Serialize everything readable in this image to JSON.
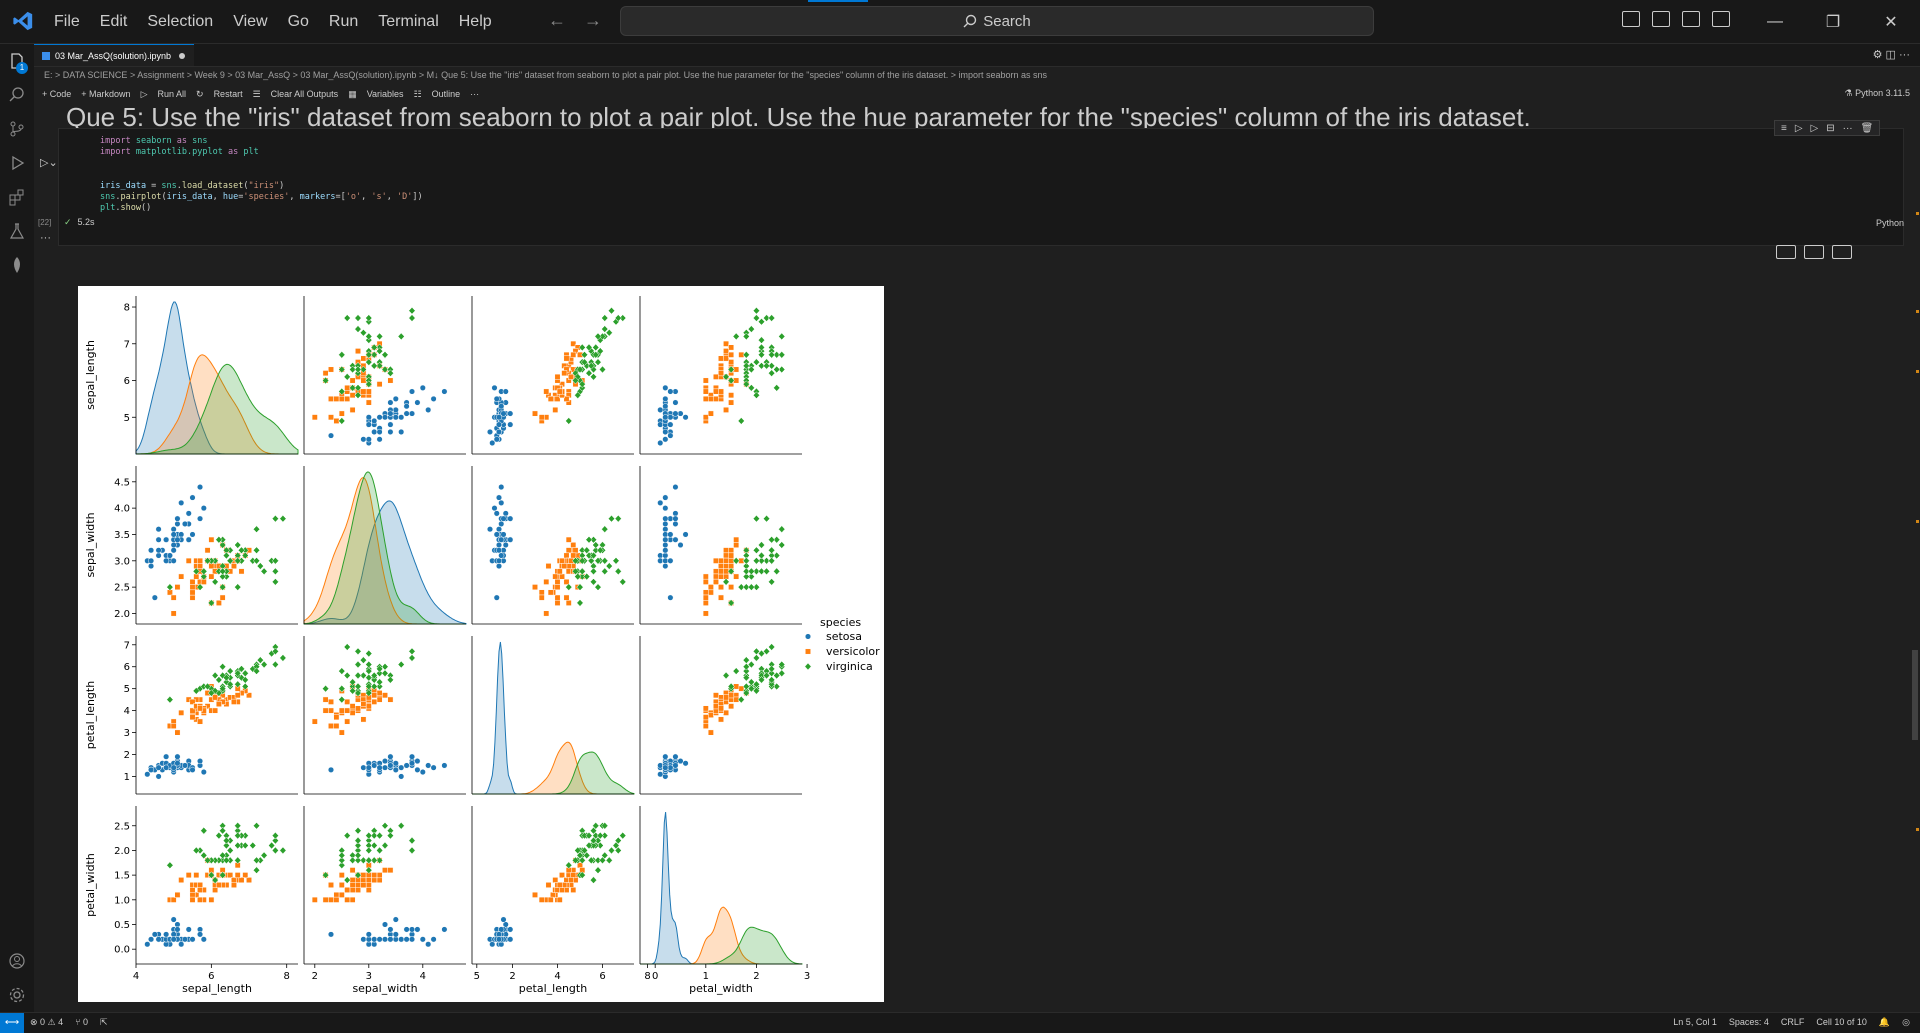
{
  "menu": [
    "File",
    "Edit",
    "Selection",
    "View",
    "Go",
    "Run",
    "Terminal",
    "Help"
  ],
  "search": {
    "label": "Search"
  },
  "tab": {
    "title": "03 Mar_AssQ(solution).ipynb"
  },
  "breadcrumb": "E: > DATA SCIENCE > Assignment > Week 9 > 03 Mar_AssQ > 03 Mar_AssQ(solution).ipynb > M↓ Que 5: Use the \"iris\" dataset from seaborn to plot a pair plot. Use the hue parameter for the \"species\" column of the iris dataset. > import seaborn as sns",
  "toolbar": [
    "+ Code",
    "+ Markdown",
    "Run All",
    "Restart",
    "Clear All Outputs",
    "Variables",
    "Outline",
    "···"
  ],
  "kernel": "Python 3.11.5",
  "heading": "Que 5: Use the \"iris\" dataset from seaborn to plot a pair plot. Use the hue parameter for the \"species\" column of the iris dataset.",
  "cell": {
    "exec_count": "[22]",
    "time": "5.2s",
    "language": "Python",
    "badge": "1"
  },
  "statusbar": {
    "errors": "⊗ 0 ⚠ 4",
    "ports": "⑂ 0",
    "position": "Ln 5, Col 1",
    "spaces": "Spaces: 4",
    "eol": "CRLF",
    "cell": "Cell 10 of 10"
  },
  "chart_data": {
    "type": "scatter",
    "title": "",
    "variables": [
      "sepal_length",
      "sepal_width",
      "petal_length",
      "petal_width"
    ],
    "legend": {
      "title": "species",
      "entries": [
        "setosa",
        "versicolor",
        "virginica"
      ],
      "markers": [
        "o",
        "s",
        "D"
      ],
      "placement": "right"
    },
    "colors": {
      "setosa": "#1f77b4",
      "versicolor": "#ff7f0e",
      "virginica": "#2ca02c"
    },
    "x_ticks": [
      [
        4,
        6,
        8
      ],
      [
        2,
        3,
        4,
        5
      ],
      [
        2,
        4,
        6,
        8
      ],
      [
        0,
        1,
        2,
        3
      ]
    ],
    "y_ticks": [
      [
        5,
        6,
        7,
        8
      ],
      [
        2.0,
        2.5,
        3.0,
        3.5,
        4.0,
        4.5
      ],
      [
        1,
        2,
        3,
        4,
        5,
        6,
        7
      ],
      [
        0.0,
        0.5,
        1.0,
        1.5,
        2.0,
        2.5
      ]
    ],
    "series": [
      {
        "name": "setosa",
        "points": [
          [
            5.1,
            3.5,
            1.4,
            0.2
          ],
          [
            4.9,
            3.0,
            1.4,
            0.2
          ],
          [
            4.7,
            3.2,
            1.3,
            0.2
          ],
          [
            4.6,
            3.1,
            1.5,
            0.2
          ],
          [
            5.0,
            3.6,
            1.4,
            0.2
          ],
          [
            5.4,
            3.9,
            1.7,
            0.4
          ],
          [
            4.6,
            3.4,
            1.4,
            0.3
          ],
          [
            5.0,
            3.4,
            1.5,
            0.2
          ],
          [
            4.4,
            2.9,
            1.4,
            0.2
          ],
          [
            4.9,
            3.1,
            1.5,
            0.1
          ],
          [
            5.4,
            3.7,
            1.5,
            0.2
          ],
          [
            4.8,
            3.4,
            1.6,
            0.2
          ],
          [
            4.8,
            3.0,
            1.4,
            0.1
          ],
          [
            4.3,
            3.0,
            1.1,
            0.1
          ],
          [
            5.8,
            4.0,
            1.2,
            0.2
          ],
          [
            5.7,
            4.4,
            1.5,
            0.4
          ],
          [
            5.4,
            3.9,
            1.3,
            0.4
          ],
          [
            5.1,
            3.5,
            1.4,
            0.3
          ],
          [
            5.7,
            3.8,
            1.7,
            0.3
          ],
          [
            5.1,
            3.8,
            1.5,
            0.3
          ],
          [
            5.4,
            3.4,
            1.7,
            0.2
          ],
          [
            5.1,
            3.7,
            1.5,
            0.4
          ],
          [
            4.6,
            3.6,
            1.0,
            0.2
          ],
          [
            5.1,
            3.3,
            1.7,
            0.5
          ],
          [
            4.8,
            3.4,
            1.9,
            0.2
          ],
          [
            5.0,
            3.0,
            1.6,
            0.2
          ],
          [
            5.0,
            3.4,
            1.6,
            0.4
          ],
          [
            5.2,
            3.5,
            1.5,
            0.2
          ],
          [
            5.2,
            3.4,
            1.4,
            0.2
          ],
          [
            4.7,
            3.2,
            1.6,
            0.2
          ],
          [
            4.8,
            3.1,
            1.6,
            0.2
          ],
          [
            5.4,
            3.4,
            1.5,
            0.4
          ],
          [
            5.2,
            4.1,
            1.5,
            0.1
          ],
          [
            5.5,
            4.2,
            1.4,
            0.2
          ],
          [
            4.9,
            3.1,
            1.5,
            0.2
          ],
          [
            5.0,
            3.2,
            1.2,
            0.2
          ],
          [
            5.5,
            3.5,
            1.3,
            0.2
          ],
          [
            4.4,
            3.0,
            1.3,
            0.2
          ],
          [
            5.1,
            3.4,
            1.5,
            0.2
          ],
          [
            5.0,
            3.5,
            1.3,
            0.3
          ],
          [
            4.5,
            2.3,
            1.3,
            0.3
          ],
          [
            4.4,
            3.2,
            1.3,
            0.2
          ],
          [
            5.0,
            3.5,
            1.6,
            0.6
          ],
          [
            5.1,
            3.8,
            1.9,
            0.4
          ],
          [
            4.8,
            3.0,
            1.4,
            0.3
          ],
          [
            5.1,
            3.8,
            1.6,
            0.2
          ],
          [
            4.6,
            3.2,
            1.4,
            0.2
          ],
          [
            5.3,
            3.7,
            1.5,
            0.2
          ],
          [
            5.0,
            3.3,
            1.4,
            0.2
          ]
        ]
      },
      {
        "name": "versicolor",
        "points": [
          [
            7.0,
            3.2,
            4.7,
            1.4
          ],
          [
            6.4,
            3.2,
            4.5,
            1.5
          ],
          [
            6.9,
            3.1,
            4.9,
            1.5
          ],
          [
            5.5,
            2.3,
            4.0,
            1.3
          ],
          [
            6.5,
            2.8,
            4.6,
            1.5
          ],
          [
            5.7,
            2.8,
            4.5,
            1.3
          ],
          [
            6.3,
            3.3,
            4.7,
            1.6
          ],
          [
            4.9,
            2.4,
            3.3,
            1.0
          ],
          [
            6.6,
            2.9,
            4.6,
            1.3
          ],
          [
            5.2,
            2.7,
            3.9,
            1.4
          ],
          [
            5.0,
            2.0,
            3.5,
            1.0
          ],
          [
            5.9,
            3.0,
            4.2,
            1.5
          ],
          [
            6.0,
            2.2,
            4.0,
            1.0
          ],
          [
            6.1,
            2.9,
            4.7,
            1.4
          ],
          [
            5.6,
            2.9,
            3.6,
            1.3
          ],
          [
            6.7,
            3.1,
            4.4,
            1.4
          ],
          [
            5.6,
            3.0,
            4.5,
            1.5
          ],
          [
            5.8,
            2.7,
            4.1,
            1.0
          ],
          [
            6.2,
            2.2,
            4.5,
            1.5
          ],
          [
            5.6,
            2.5,
            3.9,
            1.1
          ],
          [
            5.9,
            3.2,
            4.8,
            1.8
          ],
          [
            6.1,
            2.8,
            4.0,
            1.3
          ],
          [
            6.3,
            2.5,
            4.9,
            1.5
          ],
          [
            6.1,
            2.8,
            4.7,
            1.2
          ],
          [
            6.4,
            2.9,
            4.3,
            1.3
          ],
          [
            6.6,
            3.0,
            4.4,
            1.4
          ],
          [
            6.8,
            2.8,
            4.8,
            1.4
          ],
          [
            6.7,
            3.0,
            5.0,
            1.7
          ],
          [
            6.0,
            2.9,
            4.5,
            1.5
          ],
          [
            5.7,
            2.6,
            3.5,
            1.0
          ],
          [
            5.5,
            2.4,
            3.8,
            1.1
          ],
          [
            5.5,
            2.4,
            3.7,
            1.0
          ],
          [
            5.8,
            2.7,
            3.9,
            1.2
          ],
          [
            6.0,
            2.7,
            5.1,
            1.6
          ],
          [
            5.4,
            3.0,
            4.5,
            1.5
          ],
          [
            6.0,
            3.4,
            4.5,
            1.6
          ],
          [
            6.7,
            3.1,
            4.7,
            1.5
          ],
          [
            6.3,
            2.3,
            4.4,
            1.3
          ],
          [
            5.6,
            3.0,
            4.1,
            1.3
          ],
          [
            5.5,
            2.5,
            4.0,
            1.3
          ],
          [
            5.5,
            2.6,
            4.4,
            1.2
          ],
          [
            6.1,
            3.0,
            4.6,
            1.4
          ],
          [
            5.8,
            2.6,
            4.0,
            1.2
          ],
          [
            5.0,
            2.3,
            3.3,
            1.0
          ],
          [
            5.6,
            2.7,
            4.2,
            1.3
          ],
          [
            5.7,
            3.0,
            4.2,
            1.2
          ],
          [
            5.7,
            2.9,
            4.2,
            1.3
          ],
          [
            6.2,
            2.9,
            4.3,
            1.3
          ],
          [
            5.1,
            2.5,
            3.0,
            1.1
          ],
          [
            5.7,
            2.8,
            4.1,
            1.3
          ]
        ]
      },
      {
        "name": "virginica",
        "points": [
          [
            6.3,
            3.3,
            6.0,
            2.5
          ],
          [
            5.8,
            2.7,
            5.1,
            1.9
          ],
          [
            7.1,
            3.0,
            5.9,
            2.1
          ],
          [
            6.3,
            2.9,
            5.6,
            1.8
          ],
          [
            6.5,
            3.0,
            5.8,
            2.2
          ],
          [
            7.6,
            3.0,
            6.6,
            2.1
          ],
          [
            4.9,
            2.5,
            4.5,
            1.7
          ],
          [
            7.3,
            2.9,
            6.3,
            1.8
          ],
          [
            6.7,
            2.5,
            5.8,
            1.8
          ],
          [
            7.2,
            3.6,
            6.1,
            2.5
          ],
          [
            6.5,
            3.2,
            5.1,
            2.0
          ],
          [
            6.4,
            2.7,
            5.3,
            1.9
          ],
          [
            6.8,
            3.0,
            5.5,
            2.1
          ],
          [
            5.7,
            2.5,
            5.0,
            2.0
          ],
          [
            5.8,
            2.8,
            5.1,
            2.4
          ],
          [
            6.4,
            3.2,
            5.3,
            2.3
          ],
          [
            6.5,
            3.0,
            5.5,
            1.8
          ],
          [
            7.7,
            3.8,
            6.7,
            2.2
          ],
          [
            7.7,
            2.6,
            6.9,
            2.3
          ],
          [
            6.0,
            2.2,
            5.0,
            1.5
          ],
          [
            6.9,
            3.2,
            5.7,
            2.3
          ],
          [
            5.6,
            2.8,
            4.9,
            2.0
          ],
          [
            7.7,
            2.8,
            6.7,
            2.0
          ],
          [
            6.3,
            2.7,
            4.9,
            1.8
          ],
          [
            6.7,
            3.3,
            5.7,
            2.1
          ],
          [
            7.2,
            3.2,
            6.0,
            1.8
          ],
          [
            6.2,
            2.8,
            4.8,
            1.8
          ],
          [
            6.1,
            3.0,
            4.9,
            1.8
          ],
          [
            6.4,
            2.8,
            5.6,
            2.1
          ],
          [
            7.2,
            3.0,
            5.8,
            1.6
          ],
          [
            7.4,
            2.8,
            6.1,
            1.9
          ],
          [
            7.9,
            3.8,
            6.4,
            2.0
          ],
          [
            6.4,
            2.8,
            5.6,
            2.2
          ],
          [
            6.3,
            2.8,
            5.1,
            1.5
          ],
          [
            6.1,
            2.6,
            5.6,
            1.4
          ],
          [
            7.7,
            3.0,
            6.1,
            2.3
          ],
          [
            6.3,
            3.4,
            5.6,
            2.4
          ],
          [
            6.4,
            3.1,
            5.5,
            1.8
          ],
          [
            6.0,
            3.0,
            4.8,
            1.8
          ],
          [
            6.9,
            3.1,
            5.4,
            2.1
          ],
          [
            6.7,
            3.1,
            5.6,
            2.4
          ],
          [
            6.9,
            3.1,
            5.1,
            2.3
          ],
          [
            6.8,
            3.2,
            5.9,
            2.3
          ],
          [
            6.7,
            3.3,
            5.7,
            2.5
          ],
          [
            6.7,
            3.0,
            5.2,
            2.3
          ],
          [
            6.3,
            2.5,
            5.0,
            1.9
          ],
          [
            6.5,
            3.0,
            5.2,
            2.0
          ],
          [
            6.2,
            3.4,
            5.4,
            2.3
          ],
          [
            5.9,
            3.0,
            5.1,
            1.8
          ]
        ]
      }
    ]
  }
}
